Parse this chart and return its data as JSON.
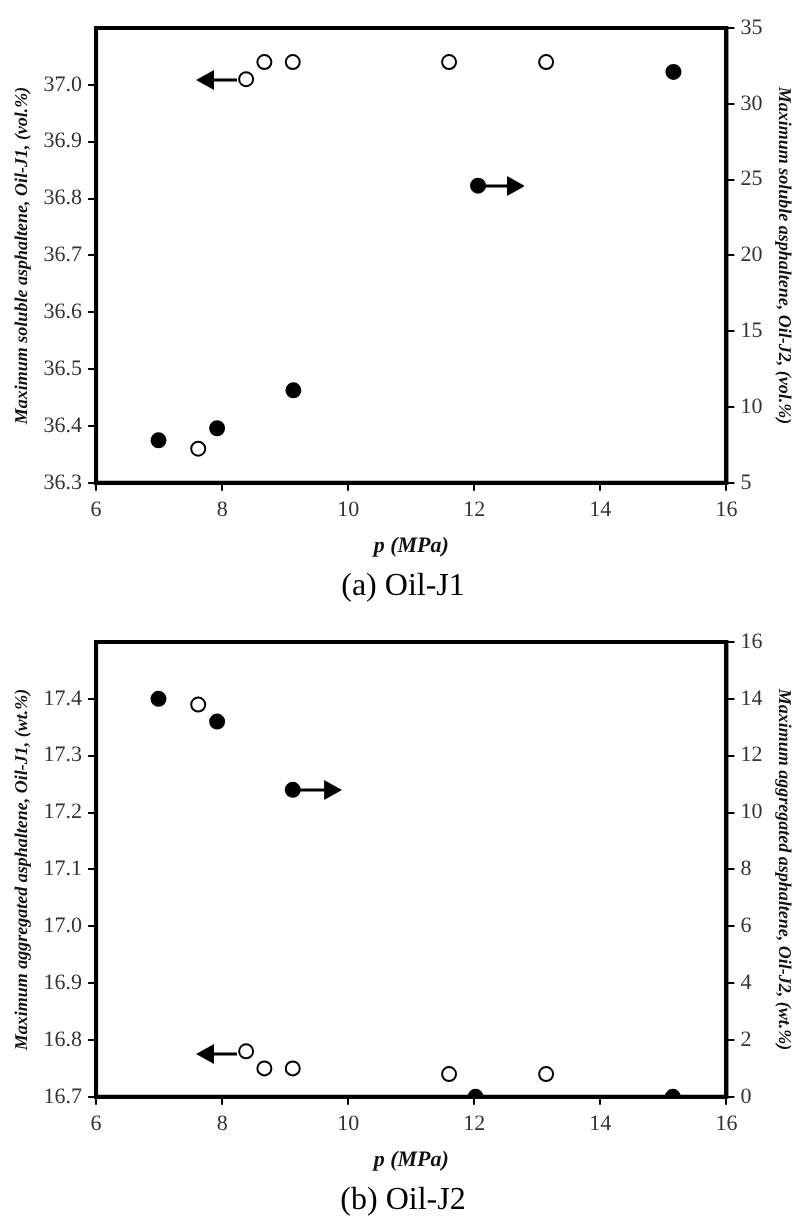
{
  "chart_data": [
    {
      "type": "scatter",
      "title": "(a) Oil-J1",
      "xlabel": "p (MPa)",
      "ylabel": "Maximum soluble asphaltene, Oil-J1, (vol.%)",
      "y2label": "Maximum soluble asphaltene, Oil-J2, (vol.%)",
      "xlim": [
        6,
        16
      ],
      "xticks": [
        6,
        8,
        10,
        12,
        14,
        16
      ],
      "ylim": [
        36.3,
        37.1
      ],
      "yticks": [
        36.3,
        36.4,
        36.5,
        36.6,
        36.7,
        36.8,
        36.9,
        {
          "value": 37,
          "label": "37.0"
        }
      ],
      "y2lim": [
        5,
        35
      ],
      "y2ticks": [
        5,
        10,
        15,
        20,
        25,
        30,
        35
      ],
      "marker": "circle",
      "grid": false,
      "legend": false,
      "series": [
        {
          "color": "#ffffff",
          "axis": "y",
          "x": [
            7.62,
            8.38,
            8.67,
            9.12,
            11.6,
            13.14
          ],
          "values": [
            36.36,
            37.01,
            37.04,
            37.04,
            37.04,
            37.04
          ]
        },
        {
          "color": "#000000",
          "axis": "y2",
          "x": [
            6.99,
            7.92,
            9.13,
            12.06,
            15.16
          ],
          "values": [
            7.8,
            8.6,
            11.1,
            24.6,
            32.1
          ]
        }
      ]
    },
    {
      "type": "scatter",
      "title": "(b) Oil-J2",
      "xlabel": "p (MPa)",
      "ylabel": "Maximum aggregated asphaltene, Oil-J1, (wt.%)",
      "y2label": "Maximum aggregated asphaltene, Oil-J2, (wt.%)",
      "xlim": [
        6,
        16
      ],
      "xticks": [
        6,
        8,
        10,
        12,
        14,
        16
      ],
      "ylim": [
        16.7,
        17.5
      ],
      "yticks": [
        16.7,
        16.8,
        16.9,
        {
          "value": 17,
          "label": "17.0"
        },
        17.1,
        17.2,
        17.3,
        17.4
      ],
      "y2lim": [
        0,
        16
      ],
      "y2ticks": [
        0,
        2,
        4,
        6,
        8,
        10,
        12,
        14,
        16
      ],
      "marker": "circle",
      "grid": false,
      "legend": false,
      "series": [
        {
          "color": "#ffffff",
          "axis": "y",
          "x": [
            7.62,
            8.38,
            8.67,
            9.12,
            11.6,
            13.14
          ],
          "values": [
            17.39,
            16.78,
            16.75,
            16.75,
            16.74,
            16.74
          ]
        },
        {
          "color": "#000000",
          "axis": "y2",
          "x": [
            6.99,
            7.92,
            9.12,
            12.02,
            15.15
          ],
          "values": [
            14.0,
            13.2,
            10.8,
            0,
            0
          ]
        }
      ]
    }
  ]
}
